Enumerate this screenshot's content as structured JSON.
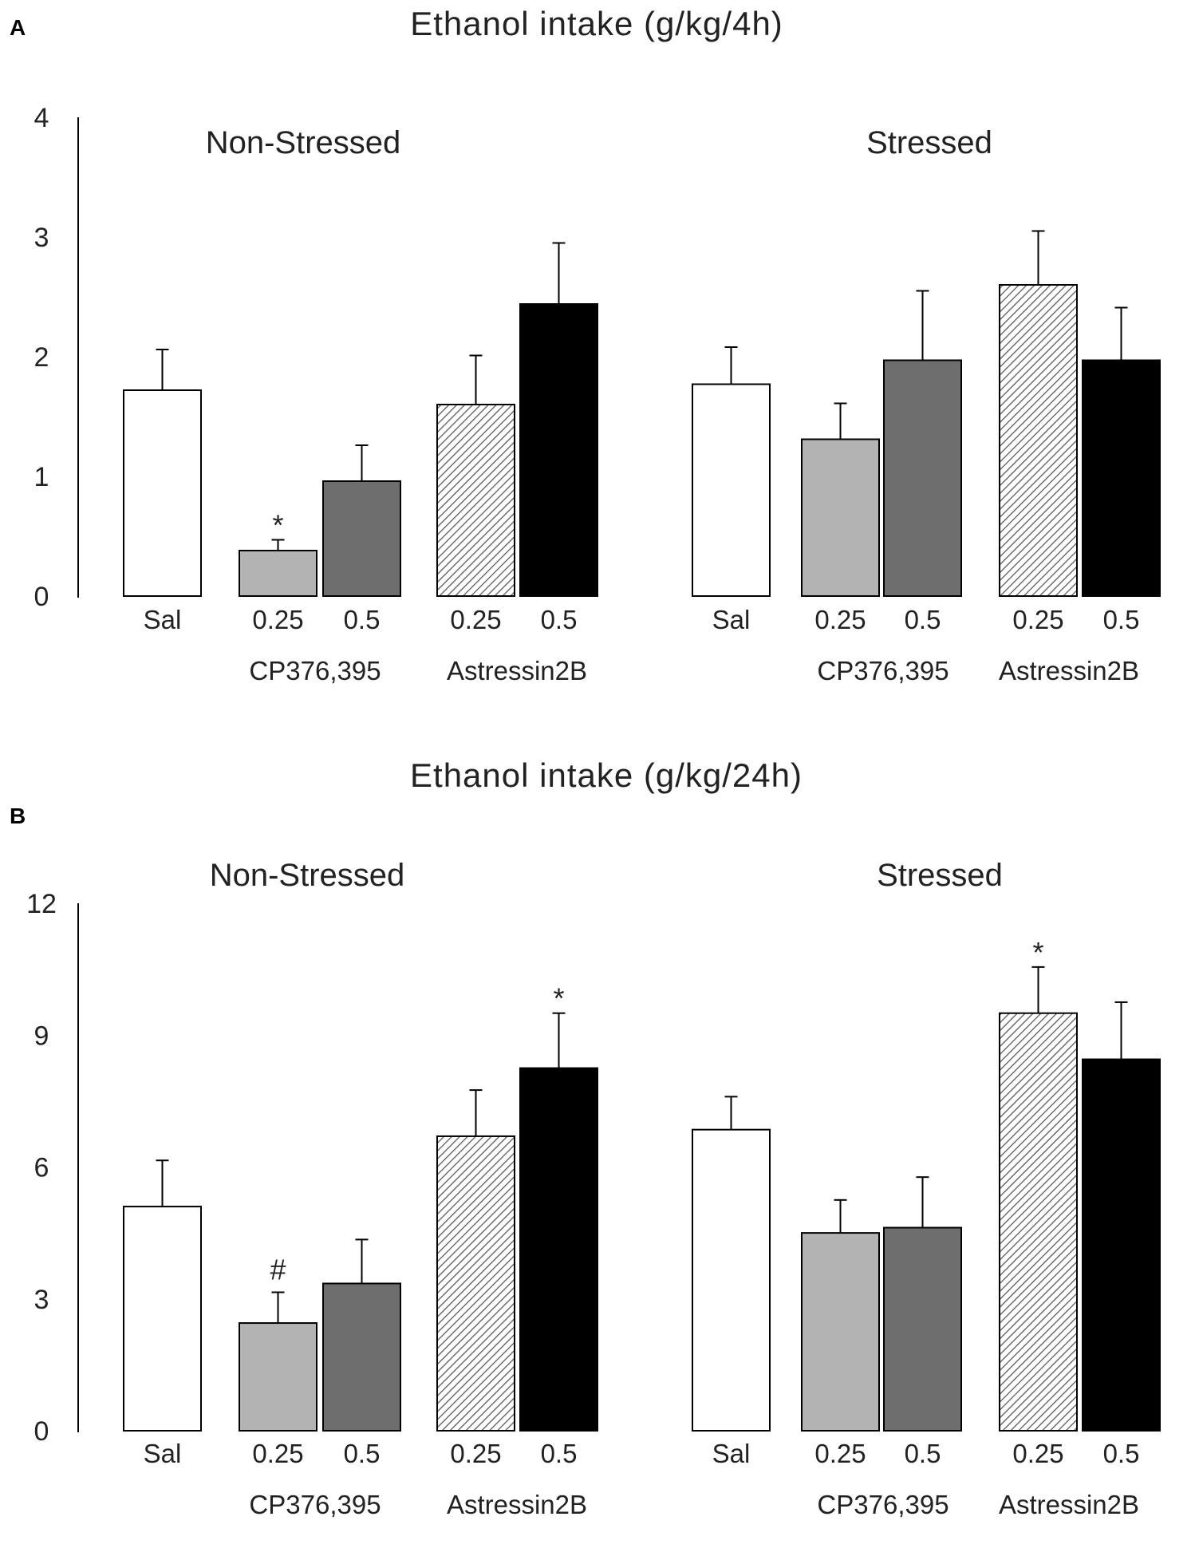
{
  "colors": {
    "Sal": "#ffffff",
    "CP_0.25": "#b3b3b3",
    "CP_0.5": "#6e6e6e",
    "Ast_0.25": "hatch",
    "Ast_0.5": "#000000"
  },
  "chart_data": [
    {
      "panel": "A",
      "type": "bar",
      "title": "Ethanol intake (g/kg/4h)",
      "ylim": [
        0,
        4
      ],
      "yticks": [
        "0",
        "1",
        "2",
        "3",
        "4"
      ],
      "groups": [
        {
          "name": "Non-Stressed",
          "bars": [
            {
              "label": "Sal",
              "key": "Sal",
              "value": 1.72,
              "error": 0.34,
              "sig": ""
            },
            {
              "label": "0.25",
              "key": "CP_0.25",
              "value": 0.38,
              "error": 0.09,
              "sig": "*"
            },
            {
              "label": "0.5",
              "key": "CP_0.5",
              "value": 0.96,
              "error": 0.3,
              "sig": ""
            },
            {
              "label": "0.25",
              "key": "Ast_0.25",
              "value": 1.6,
              "error": 0.41,
              "sig": ""
            },
            {
              "label": "0.5",
              "key": "Ast_0.5",
              "value": 2.44,
              "error": 0.51,
              "sig": ""
            }
          ],
          "drugs": [
            "CP376,395",
            "Astressin2B"
          ]
        },
        {
          "name": "Stressed",
          "bars": [
            {
              "label": "Sal",
              "key": "Sal",
              "value": 1.77,
              "error": 0.31,
              "sig": ""
            },
            {
              "label": "0.25",
              "key": "CP_0.25",
              "value": 1.31,
              "error": 0.3,
              "sig": ""
            },
            {
              "label": "0.5",
              "key": "CP_0.5",
              "value": 1.97,
              "error": 0.58,
              "sig": ""
            },
            {
              "label": "0.25",
              "key": "Ast_0.25",
              "value": 2.6,
              "error": 0.45,
              "sig": ""
            },
            {
              "label": "0.5",
              "key": "Ast_0.5",
              "value": 1.97,
              "error": 0.44,
              "sig": ""
            }
          ],
          "drugs": [
            "CP376,395",
            "Astressin2B"
          ]
        }
      ]
    },
    {
      "panel": "B",
      "type": "bar",
      "title": "Ethanol intake (g/kg/24h)",
      "ylim": [
        0,
        12
      ],
      "yticks": [
        "0",
        "3",
        "6",
        "9",
        "12"
      ],
      "groups": [
        {
          "name": "Non-Stressed",
          "bars": [
            {
              "label": "Sal",
              "key": "Sal",
              "value": 5.1,
              "error": 1.05,
              "sig": ""
            },
            {
              "label": "0.25",
              "key": "CP_0.25",
              "value": 2.45,
              "error": 0.7,
              "sig": "#"
            },
            {
              "label": "0.5",
              "key": "CP_0.5",
              "value": 3.35,
              "error": 1.0,
              "sig": ""
            },
            {
              "label": "0.25",
              "key": "Ast_0.25",
              "value": 6.7,
              "error": 1.05,
              "sig": ""
            },
            {
              "label": "0.5",
              "key": "Ast_0.5",
              "value": 8.25,
              "error": 1.25,
              "sig": "*"
            }
          ],
          "drugs": [
            "CP376,395",
            "Astressin2B"
          ]
        },
        {
          "name": "Stressed",
          "bars": [
            {
              "label": "Sal",
              "key": "Sal",
              "value": 6.85,
              "error": 0.75,
              "sig": ""
            },
            {
              "label": "0.25",
              "key": "CP_0.25",
              "value": 4.5,
              "error": 0.75,
              "sig": ""
            },
            {
              "label": "0.5",
              "key": "CP_0.5",
              "value": 4.62,
              "error": 1.15,
              "sig": ""
            },
            {
              "label": "0.25",
              "key": "Ast_0.25",
              "value": 9.5,
              "error": 1.05,
              "sig": "*"
            },
            {
              "label": "0.5",
              "key": "Ast_0.5",
              "value": 8.45,
              "error": 1.3,
              "sig": ""
            }
          ],
          "drugs": [
            "CP376,395",
            "Astressin2B"
          ]
        }
      ]
    }
  ]
}
